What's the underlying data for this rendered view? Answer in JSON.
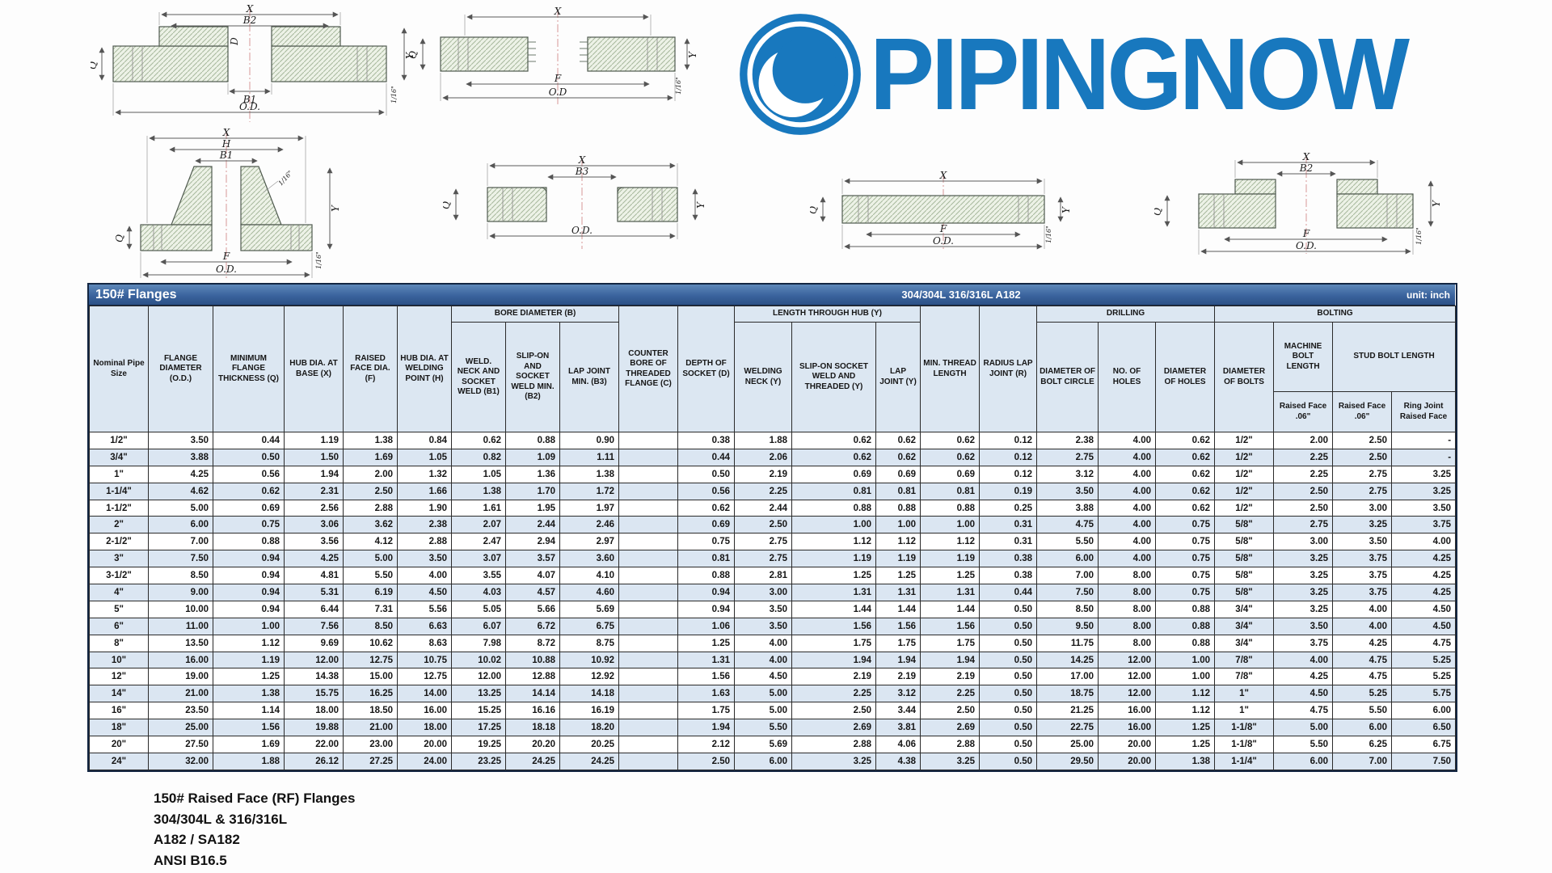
{
  "logo": {
    "text": "PIPINGNOW",
    "color": "#1878be"
  },
  "title_bar": {
    "left": "150# Flanges",
    "center": "304/304L  316/316L  A182",
    "right": "unit: inch"
  },
  "table": {
    "groups": {
      "bore": "BORE DIAMETER (B)",
      "length_hub": "LENGTH THROUGH HUB (Y)",
      "drilling": "DRILLING",
      "bolting": "BOLTING"
    },
    "headers": {
      "nominal": "Nominal Pipe Size",
      "flange_od": "FLANGE DIAMETER (O.D.)",
      "min_thickness": "MINIMUM FLANGE THICKNESS (Q)",
      "hub_base": "HUB DIA. AT BASE (X)",
      "raised_face": "RAISED FACE DIA. (F)",
      "hub_weld": "HUB DIA. AT WELDING POINT (H)",
      "b1": "WELD. NECK AND SOCKET WELD (B1)",
      "b2": "SLIP-ON AND SOCKET WELD MIN. (B2)",
      "b3": "LAP JOINT MIN. (B3)",
      "counter_bore": "COUNTER BORE OF THREADED FLANGE (C)",
      "depth_socket": "DEPTH OF SOCKET (D)",
      "welding_neck": "WELDING NECK (Y)",
      "slip_on_y": "SLIP-ON SOCKET WELD AND THREADED (Y)",
      "lap_joint_y": "LAP JOINT (Y)",
      "min_thread": "MIN. THREAD LENGTH",
      "radius_lap": "RADIUS LAP JOINT (R)",
      "bolt_circle": "DIAMETER OF BOLT CIRCLE",
      "no_holes": "NO. OF HOLES",
      "diam_holes": "DIAMETER OF HOLES",
      "diam_bolts": "DIAMETER OF BOLTS",
      "machine_bolt": "MACHINE BOLT LENGTH",
      "stud_bolt": "STUD BOLT LENGTH",
      "machine_rf": "Raised Face .06\"",
      "stud_rf": "Raised Face .06\"",
      "ring_joint": "Ring Joint Raised Face"
    },
    "rows": [
      [
        "1/2\"",
        "3.50",
        "0.44",
        "1.19",
        "1.38",
        "0.84",
        "0.62",
        "0.88",
        "0.90",
        "",
        "0.38",
        "1.88",
        "0.62",
        "0.62",
        "0.62",
        "0.12",
        "2.38",
        "4.00",
        "0.62",
        "1/2\"",
        "2.00",
        "2.50",
        "-"
      ],
      [
        "3/4\"",
        "3.88",
        "0.50",
        "1.50",
        "1.69",
        "1.05",
        "0.82",
        "1.09",
        "1.11",
        "",
        "0.44",
        "2.06",
        "0.62",
        "0.62",
        "0.62",
        "0.12",
        "2.75",
        "4.00",
        "0.62",
        "1/2\"",
        "2.25",
        "2.50",
        "-"
      ],
      [
        "1\"",
        "4.25",
        "0.56",
        "1.94",
        "2.00",
        "1.32",
        "1.05",
        "1.36",
        "1.38",
        "",
        "0.50",
        "2.19",
        "0.69",
        "0.69",
        "0.69",
        "0.12",
        "3.12",
        "4.00",
        "0.62",
        "1/2\"",
        "2.25",
        "2.75",
        "3.25"
      ],
      [
        "1-1/4\"",
        "4.62",
        "0.62",
        "2.31",
        "2.50",
        "1.66",
        "1.38",
        "1.70",
        "1.72",
        "",
        "0.56",
        "2.25",
        "0.81",
        "0.81",
        "0.81",
        "0.19",
        "3.50",
        "4.00",
        "0.62",
        "1/2\"",
        "2.50",
        "2.75",
        "3.25"
      ],
      [
        "1-1/2\"",
        "5.00",
        "0.69",
        "2.56",
        "2.88",
        "1.90",
        "1.61",
        "1.95",
        "1.97",
        "",
        "0.62",
        "2.44",
        "0.88",
        "0.88",
        "0.88",
        "0.25",
        "3.88",
        "4.00",
        "0.62",
        "1/2\"",
        "2.50",
        "3.00",
        "3.50"
      ],
      [
        "2\"",
        "6.00",
        "0.75",
        "3.06",
        "3.62",
        "2.38",
        "2.07",
        "2.44",
        "2.46",
        "",
        "0.69",
        "2.50",
        "1.00",
        "1.00",
        "1.00",
        "0.31",
        "4.75",
        "4.00",
        "0.75",
        "5/8\"",
        "2.75",
        "3.25",
        "3.75"
      ],
      [
        "2-1/2\"",
        "7.00",
        "0.88",
        "3.56",
        "4.12",
        "2.88",
        "2.47",
        "2.94",
        "2.97",
        "",
        "0.75",
        "2.75",
        "1.12",
        "1.12",
        "1.12",
        "0.31",
        "5.50",
        "4.00",
        "0.75",
        "5/8\"",
        "3.00",
        "3.50",
        "4.00"
      ],
      [
        "3\"",
        "7.50",
        "0.94",
        "4.25",
        "5.00",
        "3.50",
        "3.07",
        "3.57",
        "3.60",
        "",
        "0.81",
        "2.75",
        "1.19",
        "1.19",
        "1.19",
        "0.38",
        "6.00",
        "4.00",
        "0.75",
        "5/8\"",
        "3.25",
        "3.75",
        "4.25"
      ],
      [
        "3-1/2\"",
        "8.50",
        "0.94",
        "4.81",
        "5.50",
        "4.00",
        "3.55",
        "4.07",
        "4.10",
        "",
        "0.88",
        "2.81",
        "1.25",
        "1.25",
        "1.25",
        "0.38",
        "7.00",
        "8.00",
        "0.75",
        "5/8\"",
        "3.25",
        "3.75",
        "4.25"
      ],
      [
        "4\"",
        "9.00",
        "0.94",
        "5.31",
        "6.19",
        "4.50",
        "4.03",
        "4.57",
        "4.60",
        "",
        "0.94",
        "3.00",
        "1.31",
        "1.31",
        "1.31",
        "0.44",
        "7.50",
        "8.00",
        "0.75",
        "5/8\"",
        "3.25",
        "3.75",
        "4.25"
      ],
      [
        "5\"",
        "10.00",
        "0.94",
        "6.44",
        "7.31",
        "5.56",
        "5.05",
        "5.66",
        "5.69",
        "",
        "0.94",
        "3.50",
        "1.44",
        "1.44",
        "1.44",
        "0.50",
        "8.50",
        "8.00",
        "0.88",
        "3/4\"",
        "3.25",
        "4.00",
        "4.50"
      ],
      [
        "6\"",
        "11.00",
        "1.00",
        "7.56",
        "8.50",
        "6.63",
        "6.07",
        "6.72",
        "6.75",
        "",
        "1.06",
        "3.50",
        "1.56",
        "1.56",
        "1.56",
        "0.50",
        "9.50",
        "8.00",
        "0.88",
        "3/4\"",
        "3.50",
        "4.00",
        "4.50"
      ],
      [
        "8\"",
        "13.50",
        "1.12",
        "9.69",
        "10.62",
        "8.63",
        "7.98",
        "8.72",
        "8.75",
        "",
        "1.25",
        "4.00",
        "1.75",
        "1.75",
        "1.75",
        "0.50",
        "11.75",
        "8.00",
        "0.88",
        "3/4\"",
        "3.75",
        "4.25",
        "4.75"
      ],
      [
        "10\"",
        "16.00",
        "1.19",
        "12.00",
        "12.75",
        "10.75",
        "10.02",
        "10.88",
        "10.92",
        "",
        "1.31",
        "4.00",
        "1.94",
        "1.94",
        "1.94",
        "0.50",
        "14.25",
        "12.00",
        "1.00",
        "7/8\"",
        "4.00",
        "4.75",
        "5.25"
      ],
      [
        "12\"",
        "19.00",
        "1.25",
        "14.38",
        "15.00",
        "12.75",
        "12.00",
        "12.88",
        "12.92",
        "",
        "1.56",
        "4.50",
        "2.19",
        "2.19",
        "2.19",
        "0.50",
        "17.00",
        "12.00",
        "1.00",
        "7/8\"",
        "4.25",
        "4.75",
        "5.25"
      ],
      [
        "14\"",
        "21.00",
        "1.38",
        "15.75",
        "16.25",
        "14.00",
        "13.25",
        "14.14",
        "14.18",
        "",
        "1.63",
        "5.00",
        "2.25",
        "3.12",
        "2.25",
        "0.50",
        "18.75",
        "12.00",
        "1.12",
        "1\"",
        "4.50",
        "5.25",
        "5.75"
      ],
      [
        "16\"",
        "23.50",
        "1.14",
        "18.00",
        "18.50",
        "16.00",
        "15.25",
        "16.16",
        "16.19",
        "",
        "1.75",
        "5.00",
        "2.50",
        "3.44",
        "2.50",
        "0.50",
        "21.25",
        "16.00",
        "1.12",
        "1\"",
        "4.75",
        "5.50",
        "6.00"
      ],
      [
        "18\"",
        "25.00",
        "1.56",
        "19.88",
        "21.00",
        "18.00",
        "17.25",
        "18.18",
        "18.20",
        "",
        "1.94",
        "5.50",
        "2.69",
        "3.81",
        "2.69",
        "0.50",
        "22.75",
        "16.00",
        "1.25",
        "1-1/8\"",
        "5.00",
        "6.00",
        "6.50"
      ],
      [
        "20\"",
        "27.50",
        "1.69",
        "22.00",
        "23.00",
        "20.00",
        "19.25",
        "20.20",
        "20.25",
        "",
        "2.12",
        "5.69",
        "2.88",
        "4.06",
        "2.88",
        "0.50",
        "25.00",
        "20.00",
        "1.25",
        "1-1/8\"",
        "5.50",
        "6.25",
        "6.75"
      ],
      [
        "24\"",
        "32.00",
        "1.88",
        "26.12",
        "27.25",
        "24.00",
        "23.25",
        "24.25",
        "24.25",
        "",
        "2.50",
        "6.00",
        "3.25",
        "4.38",
        "3.25",
        "0.50",
        "29.50",
        "20.00",
        "1.38",
        "1-1/4\"",
        "6.00",
        "7.00",
        "7.50"
      ]
    ]
  },
  "footer": {
    "lines": [
      "150# Raised Face (RF) Flanges",
      "304/304L & 316/316L",
      "A182 / SA182",
      "ANSI B16.5"
    ]
  },
  "diagrams": [
    {
      "name": "socket-weld-flange",
      "labels": [
        "X",
        "B2",
        "D",
        "Q",
        "B1",
        "O.D.",
        "Y",
        "1/16\""
      ]
    },
    {
      "name": "threaded-flange",
      "labels": [
        "X",
        "Q",
        "F",
        "O.D",
        "Y",
        "1/16\""
      ]
    },
    {
      "name": "weld-neck-flange",
      "labels": [
        "X",
        "H",
        "B1",
        "1/16\"",
        "Q",
        "F",
        "O.D.",
        "Y",
        "1/16\""
      ]
    },
    {
      "name": "lap-joint-flange",
      "labels": [
        "Q",
        "X",
        "B3",
        "O.D.",
        "Y"
      ]
    },
    {
      "name": "blind-flange",
      "labels": [
        "Q",
        "X",
        "F",
        "O.D.",
        "Y",
        "1/16\""
      ]
    },
    {
      "name": "slip-on-flange",
      "labels": [
        "Q",
        "X",
        "B2",
        "F",
        "O.D.",
        "Y",
        "1/16\""
      ]
    }
  ]
}
